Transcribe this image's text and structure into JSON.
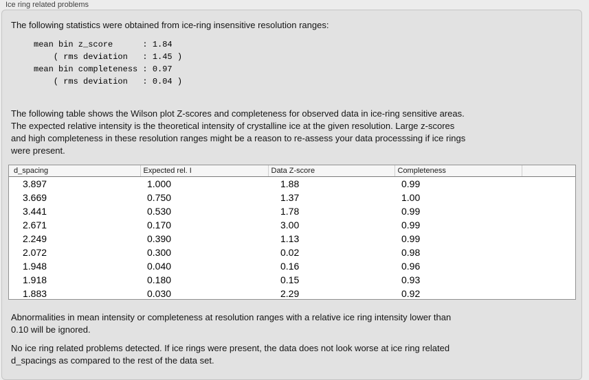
{
  "panel": {
    "group_title": "Ice ring related problems"
  },
  "stats": {
    "intro": "The following statistics were obtained from ice-ring insensitive resolution ranges:",
    "block": "mean bin z_score      : 1.84\n    ( rms deviation   : 1.45 )\nmean bin completeness : 0.97\n    ( rms deviation   : 0.04 )",
    "mean_bin_z_score": "1.84",
    "z_score_rms_deviation": "1.45",
    "mean_bin_completeness": "0.97",
    "completeness_rms_deviation": "0.04"
  },
  "table_intro": "The following table shows the Wilson plot Z-scores and completeness for observed data in ice-ring sensitive areas.\nThe expected relative intensity is the theoretical intensity of crystalline ice at the given resolution. Large z-scores\nand high completeness in these resolution ranges might be a reason to re-assess your data processsing if ice rings\nwere present.",
  "table": {
    "headers": [
      "d_spacing",
      "Expected rel. I",
      "Data Z-score",
      "Completeness",
      ""
    ],
    "rows": [
      [
        "3.897",
        "1.000",
        "1.88",
        "0.99"
      ],
      [
        "3.669",
        "0.750",
        "1.37",
        "1.00"
      ],
      [
        "3.441",
        "0.530",
        "1.78",
        "0.99"
      ],
      [
        "2.671",
        "0.170",
        "3.00",
        "0.99"
      ],
      [
        "2.249",
        "0.390",
        "1.13",
        "0.99"
      ],
      [
        "2.072",
        "0.300",
        "0.02",
        "0.98"
      ],
      [
        "1.948",
        "0.040",
        "0.16",
        "0.96"
      ],
      [
        "1.918",
        "0.180",
        "0.15",
        "0.93"
      ],
      [
        "1.883",
        "0.030",
        "2.29",
        "0.92"
      ]
    ]
  },
  "notes": {
    "ignore_note": "Abnormalities in mean intensity or completeness at resolution ranges with a relative ice ring intensity lower than\n0.10 will be ignored.",
    "conclusion": "No ice ring related problems detected. If ice rings were present, the data does not look worse at ice ring related\nd_spacings as compared to the rest of the data set."
  }
}
